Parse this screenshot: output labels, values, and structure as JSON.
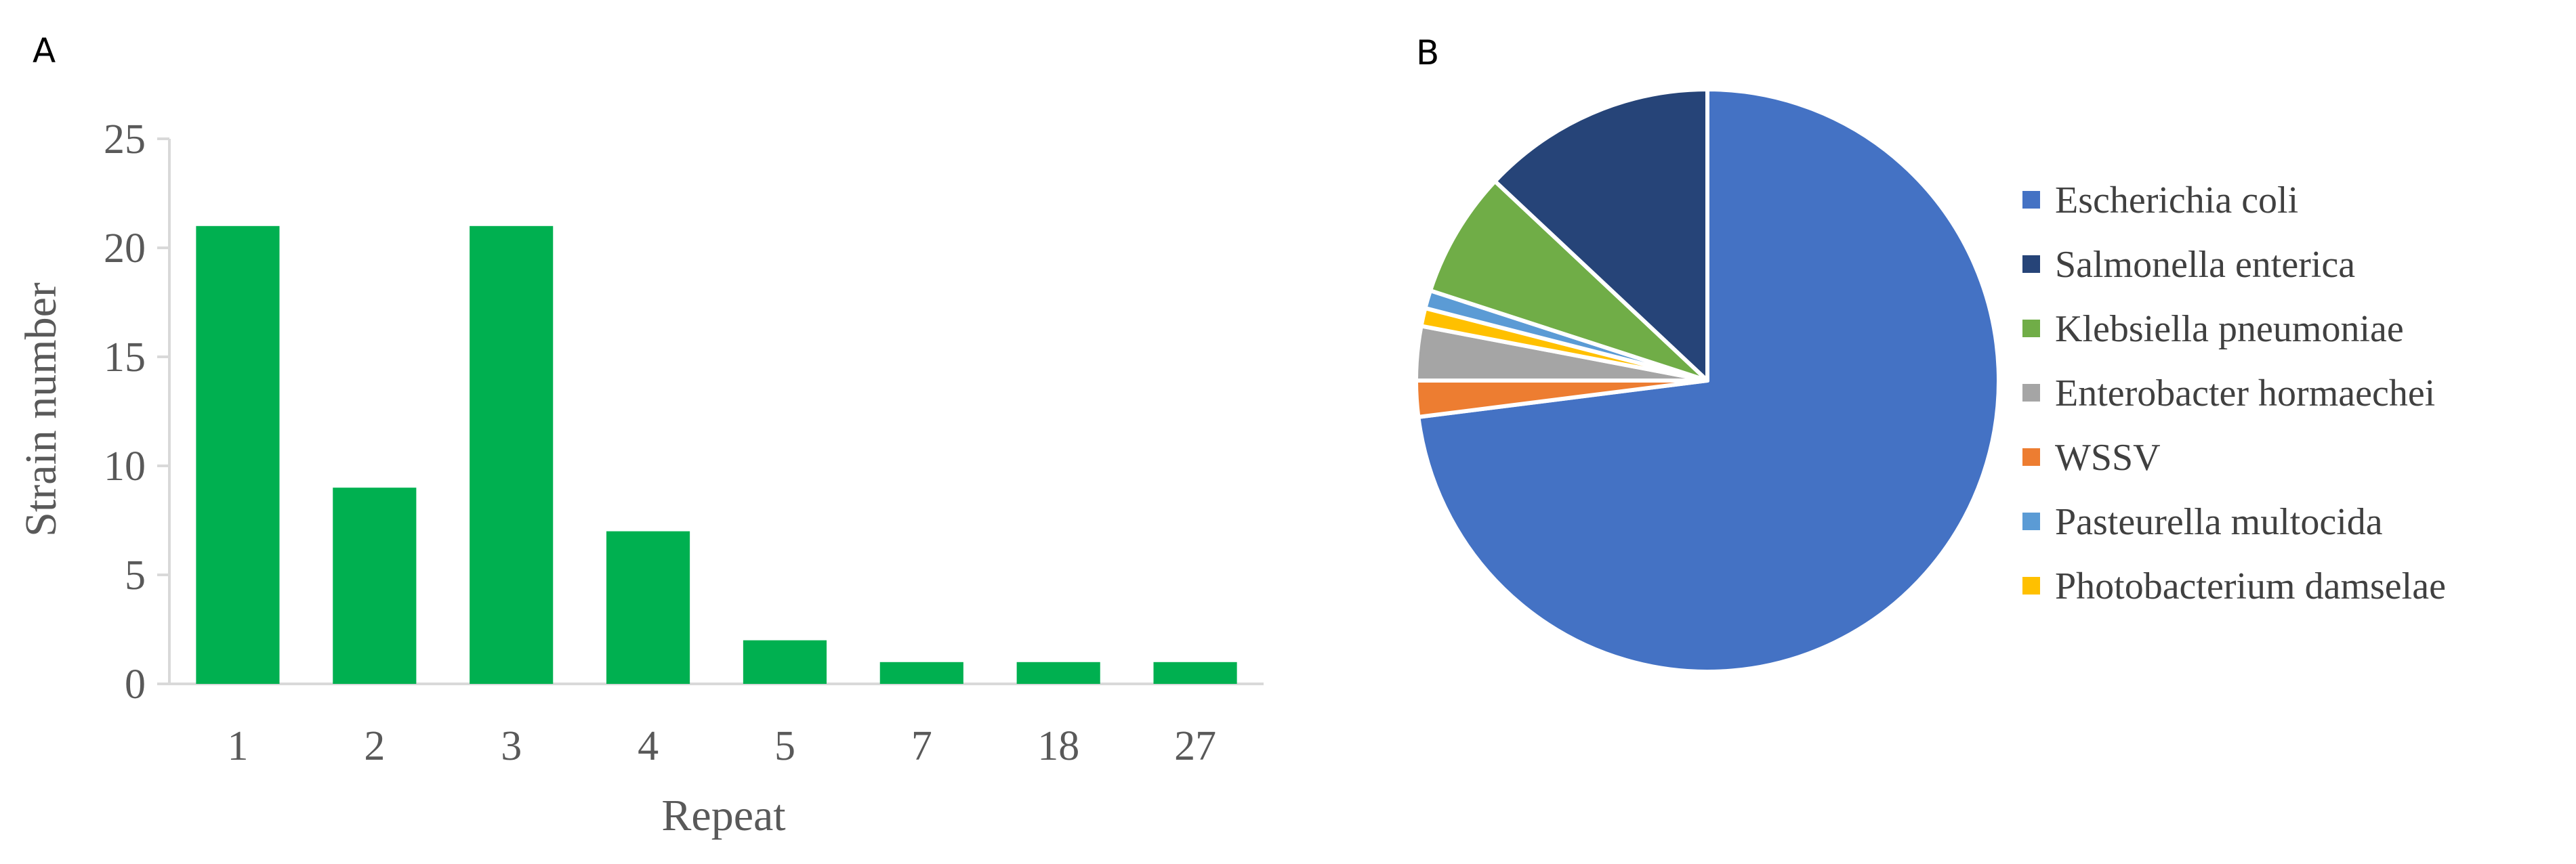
{
  "chart_data": [
    {
      "panel_label": "A",
      "type": "bar",
      "categories": [
        "1",
        "2",
        "3",
        "4",
        "5",
        "7",
        "18",
        "27"
      ],
      "values": [
        21,
        9,
        21,
        7,
        2,
        1,
        1,
        1
      ],
      "xlabel": "Repeat",
      "ylabel": "Strain number",
      "ylim": [
        0,
        25
      ],
      "yticks": [
        0,
        5,
        10,
        15,
        20,
        25
      ],
      "grid": false,
      "bar_color": "#00B050"
    },
    {
      "panel_label": "B",
      "type": "pie",
      "legend_position": "right",
      "slices": [
        {
          "label": "Escherichia coli",
          "value": 73,
          "color": "#4472C4"
        },
        {
          "label": "WSSV",
          "value": 2,
          "color": "#ED7D31"
        },
        {
          "label": "Enterobacter hormaechei",
          "value": 3,
          "color": "#A5A5A5"
        },
        {
          "label": "Photobacterium damselae",
          "value": 1,
          "color": "#FFC000"
        },
        {
          "label": "Pasteurella multocida",
          "value": 1,
          "color": "#5B9BD5"
        },
        {
          "label": "Klebsiella pneumoniae",
          "value": 7,
          "color": "#70AD47"
        },
        {
          "label": "Salmonella enterica",
          "value": 13,
          "color": "#264478"
        }
      ],
      "legend_order": [
        "Escherichia coli",
        "Salmonella enterica",
        "Klebsiella pneumoniae",
        "Enterobacter hormaechei",
        "WSSV",
        "Pasteurella multocida",
        "Photobacterium damselae"
      ]
    }
  ]
}
